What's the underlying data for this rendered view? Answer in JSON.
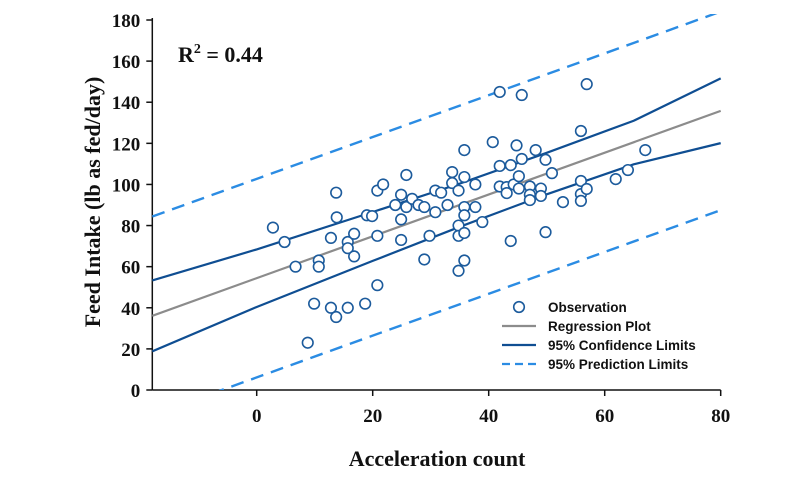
{
  "chart_data": {
    "type": "scatter",
    "title": "",
    "xlabel": "Acceleration count",
    "ylabel": "Feed Intake (lb as fed/day)",
    "xlim": [
      -18,
      80
    ],
    "ylim": [
      0,
      180
    ],
    "xticks": [
      0,
      20,
      40,
      60,
      80
    ],
    "yticks": [
      0,
      20,
      40,
      60,
      80,
      100,
      120,
      140,
      160,
      180
    ],
    "grid": false,
    "legend_position": "bottom-right",
    "annotation": {
      "label": "R",
      "superscript": "2",
      "value": " = 0.44"
    },
    "colors": {
      "observation": "#1c5b9c",
      "regression": "#8c8c8c",
      "confidence": "#0f4e92",
      "prediction": "#2b8ce3"
    },
    "series": [
      {
        "name": "Observation",
        "kind": "points",
        "points": [
          [
            2.8,
            79
          ],
          [
            4.8,
            72
          ],
          [
            6.7,
            60
          ],
          [
            10.7,
            63
          ],
          [
            10.7,
            60
          ],
          [
            9.9,
            42
          ],
          [
            8.8,
            23
          ],
          [
            12.8,
            74
          ],
          [
            13.7,
            96
          ],
          [
            13.8,
            84
          ],
          [
            12.8,
            40
          ],
          [
            13.7,
            35.5
          ],
          [
            15.7,
            72
          ],
          [
            15.7,
            69
          ],
          [
            15.7,
            40
          ],
          [
            16.8,
            76
          ],
          [
            16.8,
            65
          ],
          [
            18.7,
            42
          ],
          [
            19,
            85
          ],
          [
            19.9,
            84.6
          ],
          [
            20.8,
            51
          ],
          [
            20.8,
            75
          ],
          [
            20.8,
            97
          ],
          [
            21.8,
            100
          ],
          [
            23.9,
            90
          ],
          [
            24.9,
            95
          ],
          [
            24.9,
            83
          ],
          [
            24.9,
            73
          ],
          [
            25.8,
            104.6
          ],
          [
            25.8,
            89
          ],
          [
            26.8,
            93
          ],
          [
            27.9,
            90
          ],
          [
            28.9,
            89
          ],
          [
            28.9,
            63.5
          ],
          [
            29.8,
            75
          ],
          [
            30.8,
            97
          ],
          [
            30.8,
            86.5
          ],
          [
            31.8,
            96
          ],
          [
            32.9,
            90
          ],
          [
            33.7,
            106
          ],
          [
            33.7,
            100.7
          ],
          [
            34.8,
            80
          ],
          [
            34.8,
            75
          ],
          [
            34.8,
            58
          ],
          [
            34.8,
            97
          ],
          [
            35.8,
            116.7
          ],
          [
            35.8,
            103.6
          ],
          [
            35.8,
            89
          ],
          [
            35.8,
            85
          ],
          [
            35.8,
            76.4
          ],
          [
            35.8,
            63
          ],
          [
            37.7,
            100
          ],
          [
            37.7,
            89
          ],
          [
            38.9,
            81.7
          ],
          [
            40.7,
            120.6
          ],
          [
            41.9,
            145
          ],
          [
            41.9,
            109
          ],
          [
            41.9,
            99
          ],
          [
            43.1,
            98.7
          ],
          [
            43.1,
            95.8
          ],
          [
            43.8,
            72.5
          ],
          [
            43.8,
            109.4
          ],
          [
            44.3,
            100
          ],
          [
            45.7,
            143.5
          ],
          [
            44.8,
            119
          ],
          [
            45.7,
            112.4
          ],
          [
            45.2,
            104
          ],
          [
            45.2,
            98
          ],
          [
            47.1,
            99
          ],
          [
            47.1,
            95
          ],
          [
            47.1,
            92.4
          ],
          [
            48.1,
            116.7
          ],
          [
            49,
            98
          ],
          [
            49,
            94.4
          ],
          [
            49.8,
            112
          ],
          [
            49.8,
            76.8
          ],
          [
            50.9,
            105.5
          ],
          [
            52.8,
            91.4
          ],
          [
            55.9,
            126
          ],
          [
            55.9,
            101.7
          ],
          [
            55.9,
            95.3
          ],
          [
            55.9,
            92
          ],
          [
            56.9,
            148.8
          ],
          [
            56.9,
            97.8
          ],
          [
            61.9,
            102.6
          ],
          [
            64,
            107
          ],
          [
            67,
            116.7
          ]
        ]
      },
      {
        "name": "Regression Plot",
        "kind": "line",
        "x": [
          -18,
          80
        ],
        "y": [
          36.1,
          135.8
        ]
      },
      {
        "name": "95% Confidence Limits",
        "kind": "band-solid",
        "x": [
          -18,
          0,
          20,
          35,
          50,
          65,
          80
        ],
        "upper": [
          53.3,
          68.4,
          86.6,
          100.4,
          115.4,
          131.0,
          151.6
        ],
        "lower": [
          18.8,
          40.4,
          62.8,
          79.4,
          95.2,
          109.8,
          120.1
        ]
      },
      {
        "name": "95% Prediction Limits",
        "kind": "band-dashed",
        "x": [
          -18,
          80
        ],
        "upper": [
          84.4,
          184.1
        ],
        "lower": [
          -12.2,
          87.5
        ]
      }
    ]
  }
}
